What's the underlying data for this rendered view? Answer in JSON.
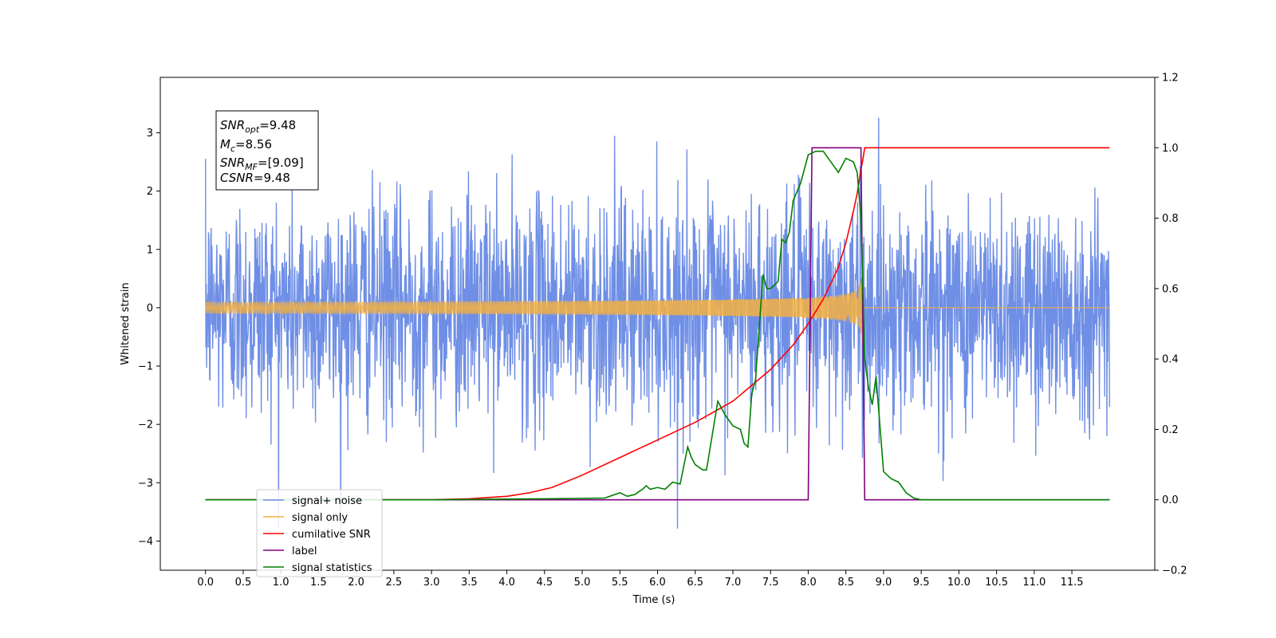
{
  "chart_data": {
    "type": "line",
    "title": "",
    "xlabel": "Time (s)",
    "ylabel": "Whitened strain",
    "xlim": [
      -0.6,
      12.6
    ],
    "ylim": [
      -4.5,
      3.95
    ],
    "y2lim": [
      -0.2,
      1.2
    ],
    "grid": false,
    "legend_position": "bottom-left",
    "x_ticks": [
      "0.0",
      "0.5",
      "1.0",
      "1.5",
      "2.0",
      "2.5",
      "3.0",
      "3.5",
      "4.0",
      "4.5",
      "5.0",
      "5.5",
      "6.0",
      "6.5",
      "7.0",
      "7.5",
      "8.0",
      "8.5",
      "9.0",
      "9.5",
      "10.0",
      "10.5",
      "11.0",
      "11.5"
    ],
    "y_ticks": [
      "−4",
      "−3",
      "−2",
      "−1",
      "0",
      "1",
      "2",
      "3"
    ],
    "y2_ticks": [
      "−0.2",
      "0.0",
      "0.2",
      "0.4",
      "0.6",
      "0.8",
      "1.0",
      "1.2"
    ],
    "annotation": {
      "snr_opt": {
        "name": "SNR",
        "sub": "opt",
        "value": "=9.48"
      },
      "mc": {
        "name": "M",
        "sub": "c",
        "value": "=8.56"
      },
      "snr_mf": {
        "name": "SNR",
        "sub": "MF",
        "value": "=[9.09]"
      },
      "csnr": {
        "name": "CSNR",
        "sub": "",
        "value": "=9.48"
      }
    },
    "series": [
      {
        "name": "signal+ noise",
        "color": "#6f8fe6",
        "axis": "left",
        "kind": "noise",
        "noise_std": 0.95,
        "t_range": [
          0.0,
          12.0
        ]
      },
      {
        "name": "signal only",
        "color": "#f5b041",
        "axis": "left",
        "kind": "chirp",
        "t_coalescence": 8.72,
        "peak_amplitude": 0.65
      },
      {
        "name": "cumilative SNR",
        "color": "#ff0000",
        "axis": "right",
        "x": [
          0.0,
          3.0,
          3.5,
          4.0,
          4.3,
          4.6,
          5.0,
          5.5,
          6.0,
          6.5,
          7.0,
          7.5,
          7.8,
          8.0,
          8.2,
          8.4,
          8.5,
          8.6,
          8.65,
          8.7,
          8.72,
          8.75,
          12.0
        ],
        "y": [
          0.0,
          0.0,
          0.003,
          0.01,
          0.02,
          0.035,
          0.07,
          0.12,
          0.17,
          0.22,
          0.28,
          0.37,
          0.44,
          0.5,
          0.57,
          0.66,
          0.73,
          0.82,
          0.87,
          0.94,
          0.96,
          1.0,
          1.0
        ]
      },
      {
        "name": "label",
        "color": "#800080",
        "axis": "right",
        "x": [
          0.0,
          8.0,
          8.05,
          8.7,
          8.75,
          12.0
        ],
        "y": [
          0.0,
          0.0,
          1.0,
          1.0,
          0.0,
          0.0
        ]
      },
      {
        "name": "signal statistics",
        "color": "#008000",
        "axis": "right",
        "x": [
          0.0,
          3.0,
          4.5,
          5.3,
          5.5,
          5.6,
          5.7,
          5.8,
          5.85,
          5.9,
          6.0,
          6.1,
          6.2,
          6.3,
          6.4,
          6.45,
          6.5,
          6.6,
          6.65,
          6.7,
          6.8,
          6.9,
          7.0,
          7.1,
          7.15,
          7.2,
          7.25,
          7.3,
          7.4,
          7.45,
          7.5,
          7.6,
          7.65,
          7.7,
          7.75,
          7.8,
          7.9,
          8.0,
          8.1,
          8.2,
          8.3,
          8.4,
          8.45,
          8.5,
          8.6,
          8.65,
          8.7,
          8.75,
          8.8,
          8.85,
          8.9,
          9.0,
          9.1,
          9.2,
          9.3,
          9.4,
          9.5,
          9.6,
          9.8,
          12.0
        ],
        "y": [
          0.0,
          0.0,
          0.003,
          0.005,
          0.02,
          0.01,
          0.015,
          0.03,
          0.04,
          0.03,
          0.035,
          0.03,
          0.05,
          0.045,
          0.15,
          0.12,
          0.1,
          0.085,
          0.085,
          0.15,
          0.28,
          0.24,
          0.21,
          0.2,
          0.16,
          0.15,
          0.3,
          0.34,
          0.64,
          0.6,
          0.6,
          0.62,
          0.74,
          0.73,
          0.76,
          0.85,
          0.9,
          0.98,
          0.99,
          0.99,
          0.96,
          0.93,
          0.95,
          0.97,
          0.96,
          0.93,
          0.8,
          0.4,
          0.32,
          0.27,
          0.35,
          0.08,
          0.06,
          0.05,
          0.02,
          0.005,
          0.0,
          0.0,
          0.0,
          0.0
        ]
      }
    ]
  }
}
